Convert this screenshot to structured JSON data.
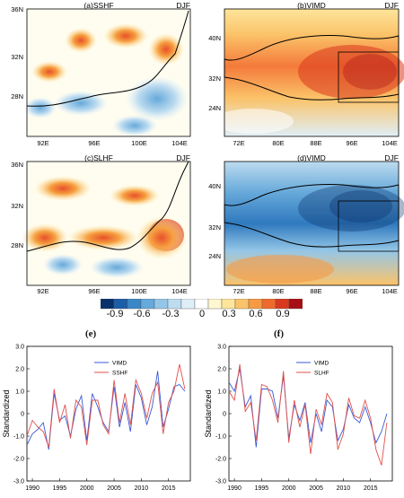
{
  "maps": [
    {
      "title": "(a)SSHF",
      "season": "DJF",
      "xticks": [
        "92E",
        "96E",
        "100E",
        "104E"
      ],
      "yticks": [
        "36N",
        "32N",
        "28N"
      ]
    },
    {
      "title": "(b)VIMD",
      "season": "DJF",
      "xticks": [
        "72E",
        "80E",
        "88E",
        "96E",
        "104E"
      ],
      "yticks": [
        "40N",
        "32N",
        "24N"
      ]
    },
    {
      "title": "(c)SLHF",
      "season": "DJF",
      "xticks": [
        "92E",
        "96E",
        "100E",
        "104E"
      ],
      "yticks": [
        "36N",
        "32N",
        "28N"
      ]
    },
    {
      "title": "(d)VIMD",
      "season": "DJF",
      "xticks": [
        "72E",
        "80E",
        "88E",
        "96E",
        "104E"
      ],
      "yticks": [
        "40N",
        "32N",
        "24N"
      ]
    }
  ],
  "colorbar": {
    "labels": [
      "-0.9",
      "-0.6",
      "-0.3",
      "0",
      "0.3",
      "0.6",
      "0.9"
    ],
    "colors": [
      "#08306b",
      "#1c5da8",
      "#3a87c8",
      "#66a9da",
      "#94c6e7",
      "#bddcf0",
      "#dfeff8",
      "#ffffff",
      "#fff7d0",
      "#fde59b",
      "#fbc369",
      "#f69a44",
      "#ee6a2a",
      "#d9381e",
      "#a50f15"
    ]
  },
  "chart_data": [
    {
      "type": "line",
      "panel": "(e)",
      "ylabel": "Standardized",
      "ylim": [
        -3.0,
        3.0
      ],
      "yticks": [
        "3.0",
        "2.0",
        "1.0",
        "0",
        "-1.0",
        "-2.0",
        "-3.0"
      ],
      "xlim": [
        1989,
        2019
      ],
      "xticks": [
        "1990",
        "1995",
        "2000",
        "2005",
        "2010",
        "2015"
      ],
      "x": [
        1989,
        1990,
        1991,
        1992,
        1993,
        1994,
        1995,
        1996,
        1997,
        1998,
        1999,
        2000,
        2001,
        2002,
        2003,
        2004,
        2005,
        2006,
        2007,
        2008,
        2009,
        2010,
        2011,
        2012,
        2013,
        2014,
        2015,
        2016,
        2017,
        2018
      ],
      "series": [
        {
          "name": "VIMD",
          "color": "#3a5ad6",
          "values": [
            -1.4,
            -0.9,
            -0.7,
            -0.4,
            -1.6,
            0.9,
            -0.3,
            -0.1,
            -1.0,
            0.2,
            0.8,
            -1.2,
            0.9,
            0.3,
            -0.4,
            -0.8,
            1.2,
            -0.6,
            0.5,
            -0.8,
            1.3,
            0.7,
            -0.5,
            0.3,
            1.9,
            -0.6,
            0.2,
            1.2,
            1.3,
            1.0
          ]
        },
        {
          "name": "SSHF",
          "color": "#e0504a",
          "values": [
            -1.0,
            -0.3,
            -0.6,
            -0.8,
            -1.5,
            1.1,
            -0.4,
            0.4,
            -1.1,
            0.6,
            0.3,
            -1.4,
            0.6,
            0.6,
            -0.5,
            -0.9,
            1.5,
            -0.4,
            0.9,
            -0.5,
            1.5,
            0.9,
            -0.2,
            0.9,
            1.4,
            -0.9,
            0.5,
            1.0,
            2.2,
            1.1
          ]
        }
      ]
    },
    {
      "type": "line",
      "panel": "(f)",
      "ylabel": "Standardized",
      "ylim": [
        -3.0,
        3.0
      ],
      "yticks": [
        "3.0",
        "2.0",
        "1.0",
        "0",
        "-1.0",
        "-2.0",
        "-3.0"
      ],
      "xlim": [
        1989,
        2019
      ],
      "xticks": [
        "1990",
        "1995",
        "2000",
        "2005",
        "2010",
        "2015"
      ],
      "x": [
        1989,
        1990,
        1991,
        1992,
        1993,
        1994,
        1995,
        1996,
        1997,
        1998,
        1999,
        2000,
        2001,
        2002,
        2003,
        2004,
        2005,
        2006,
        2007,
        2008,
        2009,
        2010,
        2011,
        2012,
        2013,
        2014,
        2015,
        2016,
        2017,
        2018
      ],
      "series": [
        {
          "name": "VIMD",
          "color": "#3a5ad6",
          "values": [
            1.4,
            1.0,
            2.0,
            0.3,
            0.8,
            -1.5,
            1.1,
            1.1,
            1.0,
            -0.2,
            1.7,
            -1.1,
            0.4,
            -0.3,
            0.5,
            -1.3,
            0.0,
            -0.8,
            0.6,
            0.3,
            -1.2,
            -0.7,
            0.4,
            -0.2,
            -0.4,
            0.3,
            -0.4,
            -1.3,
            -0.8,
            0.0
          ]
        },
        {
          "name": "SLHF",
          "color": "#e0504a",
          "values": [
            1.0,
            0.6,
            2.2,
            0.1,
            0.5,
            -1.2,
            1.3,
            1.2,
            0.6,
            -0.4,
            1.9,
            -1.3,
            0.6,
            -0.6,
            0.4,
            -1.8,
            0.2,
            -0.5,
            0.9,
            0.5,
            -1.6,
            -0.9,
            0.7,
            -0.1,
            -0.2,
            0.6,
            -0.2,
            -1.6,
            -2.3,
            -0.4
          ]
        }
      ]
    }
  ]
}
